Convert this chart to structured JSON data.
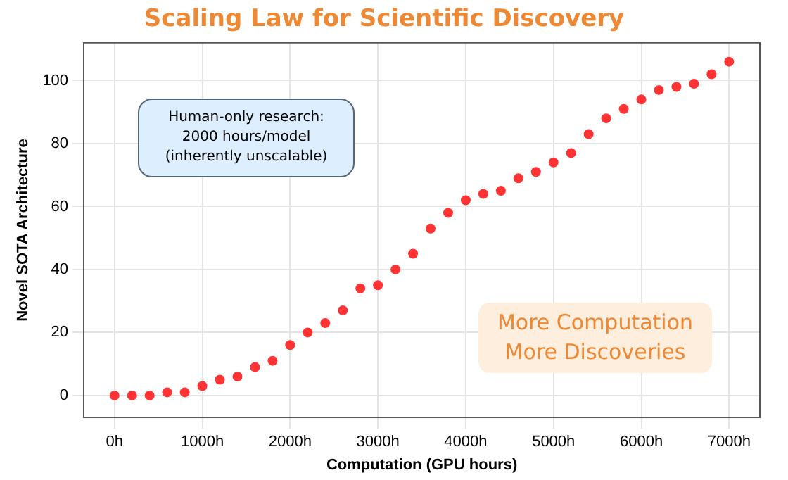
{
  "chart_data": {
    "type": "scatter",
    "title": "Scaling Law for Scientific Discovery",
    "xlabel": "Computation (GPU hours)",
    "ylabel": "Novel SOTA Architecture",
    "x": [
      0,
      200,
      400,
      600,
      800,
      1000,
      1200,
      1400,
      1600,
      1800,
      2000,
      2200,
      2400,
      2600,
      2800,
      3000,
      3200,
      3400,
      3600,
      3800,
      4000,
      4200,
      4400,
      4600,
      4800,
      5000,
      5200,
      5400,
      5600,
      5800,
      6000,
      6200,
      6400,
      6600,
      6800,
      7000
    ],
    "series": [
      {
        "color": "#ff3333",
        "values": [
          0,
          0,
          0,
          1,
          1,
          3,
          5,
          6,
          9,
          11,
          16,
          20,
          23,
          27,
          34,
          35,
          40,
          45,
          53,
          58,
          62,
          64,
          65,
          69,
          71,
          74,
          77,
          83,
          88,
          91,
          94,
          97,
          98,
          99,
          102,
          106
        ]
      }
    ],
    "xlim": [
      -350,
      7350
    ],
    "ylim": [
      -7,
      112
    ],
    "xticks": [
      {
        "value": 0,
        "label": "0h"
      },
      {
        "value": 1000,
        "label": "1000h"
      },
      {
        "value": 2000,
        "label": "2000h"
      },
      {
        "value": 3000,
        "label": "3000h"
      },
      {
        "value": 4000,
        "label": "4000h"
      },
      {
        "value": 5000,
        "label": "5000h"
      },
      {
        "value": 6000,
        "label": "6000h"
      },
      {
        "value": 7000,
        "label": "7000h"
      }
    ],
    "yticks": [
      0,
      20,
      40,
      60,
      80,
      100
    ],
    "annotations": [
      "Human-only research:\n2000 hours/model\n(inherently unscalable)",
      "More Computation\nMore Discoveries"
    ],
    "grid": true,
    "legend": false,
    "marker": "circle"
  }
}
